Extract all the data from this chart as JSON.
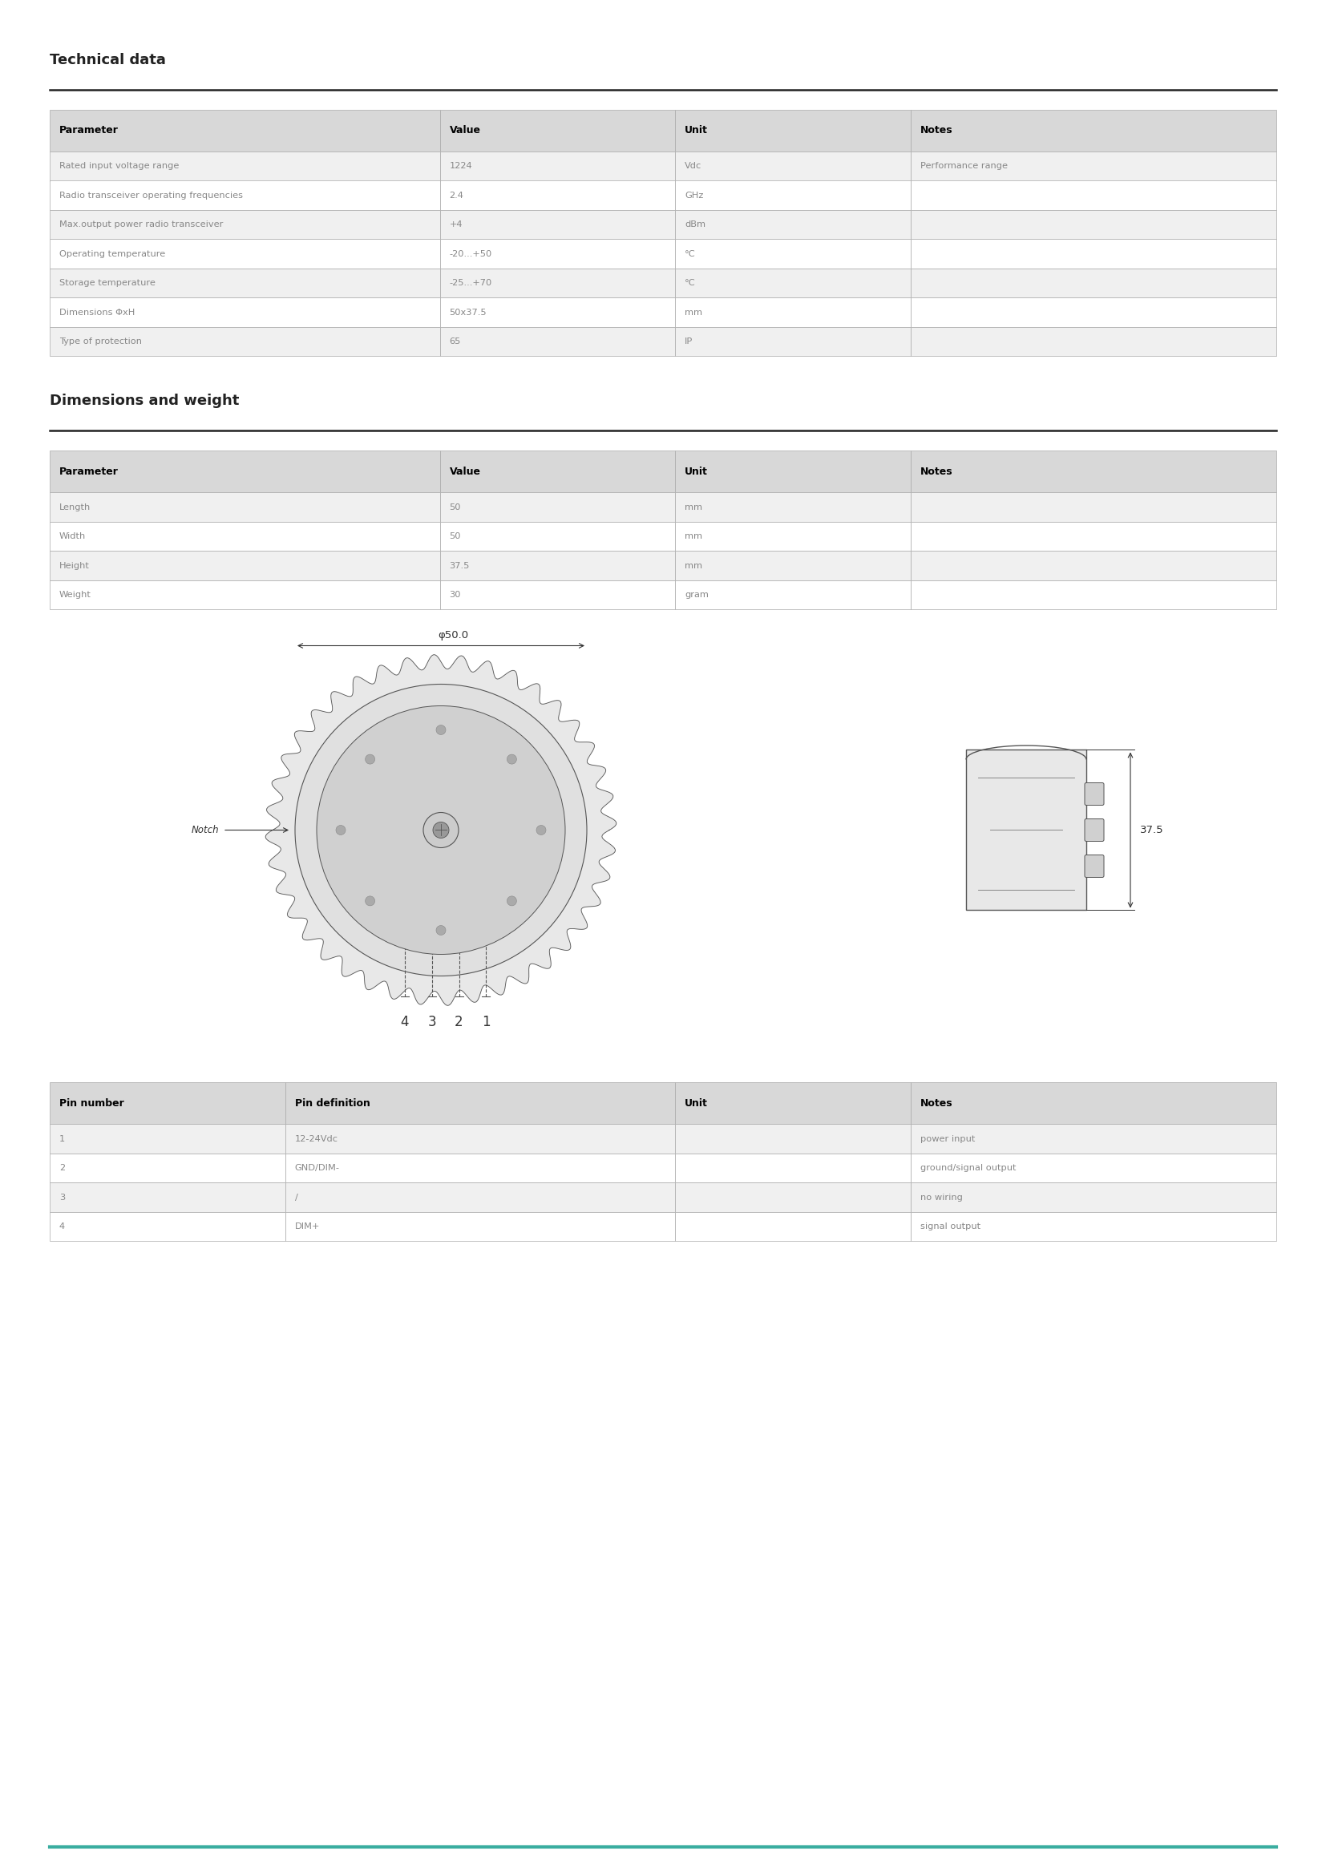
{
  "title1": "Technical data",
  "title2": "Dimensions and weight",
  "tech_headers": [
    "Parameter",
    "Value",
    "Unit",
    "Notes"
  ],
  "tech_rows": [
    [
      "Rated input voltage range",
      "1224",
      "Vdc",
      "Performance range"
    ],
    [
      "Radio transceiver operating frequencies",
      "2.4",
      "GHz",
      ""
    ],
    [
      "Max.output power radio transceiver",
      "+4",
      "dBm",
      ""
    ],
    [
      "Operating temperature",
      "-20...+50",
      "°C",
      ""
    ],
    [
      "Storage temperature",
      "-25...+70",
      "°C",
      ""
    ],
    [
      "Dimensions ΦxH",
      "50x37.5",
      "mm",
      ""
    ],
    [
      "Type of protection",
      "65",
      "IP",
      ""
    ]
  ],
  "dim_headers": [
    "Parameter",
    "Value",
    "Unit",
    "Notes"
  ],
  "dim_rows": [
    [
      "Length",
      "50",
      "mm",
      ""
    ],
    [
      "Width",
      "50",
      "mm",
      ""
    ],
    [
      "Height",
      "37.5",
      "mm",
      ""
    ],
    [
      "Weight",
      "30",
      "gram",
      ""
    ]
  ],
  "pin_headers": [
    "Pin number",
    "Pin definition",
    "Unit",
    "Notes"
  ],
  "pin_rows": [
    [
      "1",
      "12-24Vdc",
      "",
      "power input"
    ],
    [
      "2",
      "GND/DIM-",
      "",
      "ground/signal output"
    ],
    [
      "3",
      "/",
      "",
      "no wiring"
    ],
    [
      "4",
      "DIM+",
      "",
      "signal output"
    ]
  ],
  "bg_color": "#ffffff",
  "header_bg": "#d8d8d8",
  "row_bg_odd": "#f0f0f0",
  "row_bg_even": "#ffffff",
  "border_color": "#aaaaaa",
  "header_text_color": "#000000",
  "row_text_color": "#888888",
  "title_color": "#222222",
  "teal_line_color": "#3aada0",
  "section_line_color": "#222222"
}
